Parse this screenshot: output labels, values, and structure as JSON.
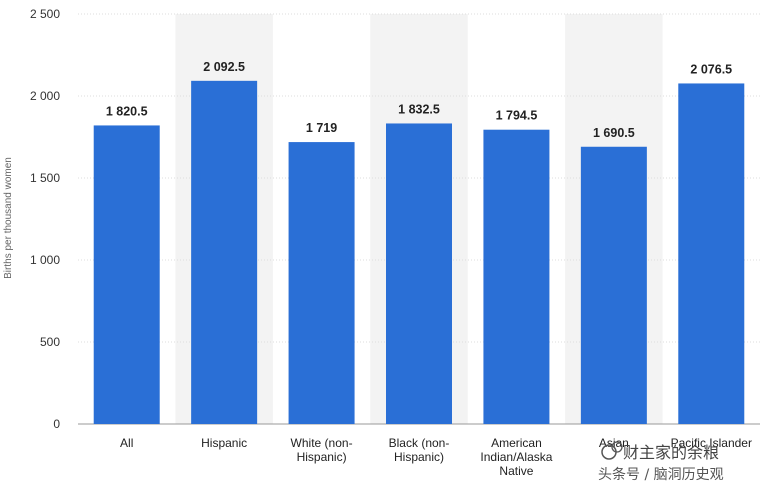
{
  "chart_data": {
    "type": "bar",
    "title": "",
    "xlabel": "",
    "ylabel": "Births per thousand women",
    "ylim": [
      0,
      2500
    ],
    "yticks": [
      0,
      500,
      1000,
      1500,
      2000,
      2500
    ],
    "ytick_labels": [
      "0",
      "500",
      "1 000",
      "1 500",
      "2 000",
      "2 500"
    ],
    "grid": true,
    "bar_color": "#2a6fd6",
    "shade_color": "#f3f3f3",
    "categories": [
      [
        "All"
      ],
      [
        "Hispanic"
      ],
      [
        "White (non-",
        "Hispanic)"
      ],
      [
        "Black (non-",
        "Hispanic)"
      ],
      [
        "American",
        "Indian/Alaska",
        "Native"
      ],
      [
        "Asian"
      ],
      [
        "Pacific Islander"
      ]
    ],
    "values": [
      1820.5,
      2092.5,
      1719,
      1832.5,
      1794.5,
      1690.5,
      2076.5
    ],
    "value_labels": [
      "1 820.5",
      "2 092.5",
      "1 719",
      "1 832.5",
      "1 794.5",
      "1 690.5",
      "2 076.5"
    ]
  },
  "watermark": {
    "line1": "财主家的余粮",
    "line2": "头条号 / 脑洞历史观"
  }
}
